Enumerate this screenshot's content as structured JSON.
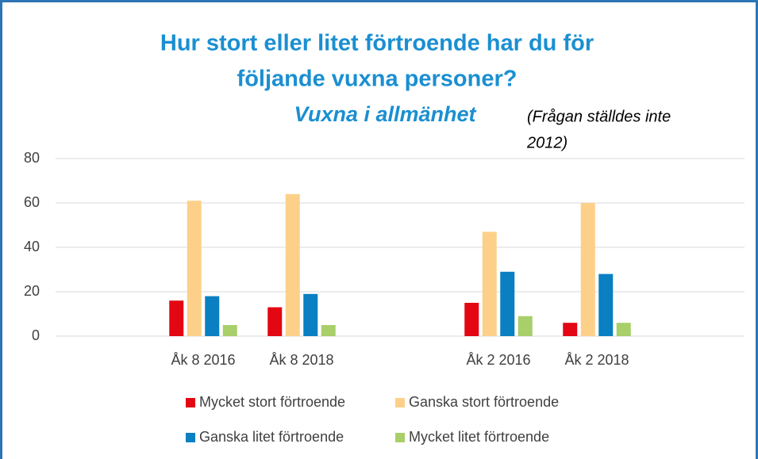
{
  "chart_data": {
    "type": "bar",
    "title": [
      "Hur stort eller litet förtroende har du för",
      "följande vuxna personer?"
    ],
    "subtitle": "Vuxna i allmänhet",
    "annotation": [
      "(Frågan ställdes inte",
      "2012)"
    ],
    "categories": [
      null,
      "Åk 8 2016",
      "Åk 8 2018",
      null,
      "Åk 2 2016",
      "Åk 2 2018",
      null
    ],
    "series": [
      {
        "name": "Mycket stort förtroende",
        "color": "#e30613",
        "values": [
          null,
          16,
          13,
          null,
          15,
          6,
          null
        ]
      },
      {
        "name": "Ganska stort förtroende",
        "color": "#fdd08a",
        "values": [
          null,
          61,
          64,
          null,
          47,
          60,
          null
        ]
      },
      {
        "name": "Ganska litet förtroende",
        "color": "#0a7fc1",
        "values": [
          null,
          18,
          19,
          null,
          29,
          28,
          null
        ]
      },
      {
        "name": "Mycket litet förtroende",
        "color": "#a8cf6a",
        "values": [
          null,
          5,
          5,
          null,
          9,
          6,
          null
        ]
      }
    ],
    "ylim": [
      0,
      80
    ],
    "yticks": [
      0,
      20,
      40,
      60,
      80
    ],
    "grid": true
  }
}
